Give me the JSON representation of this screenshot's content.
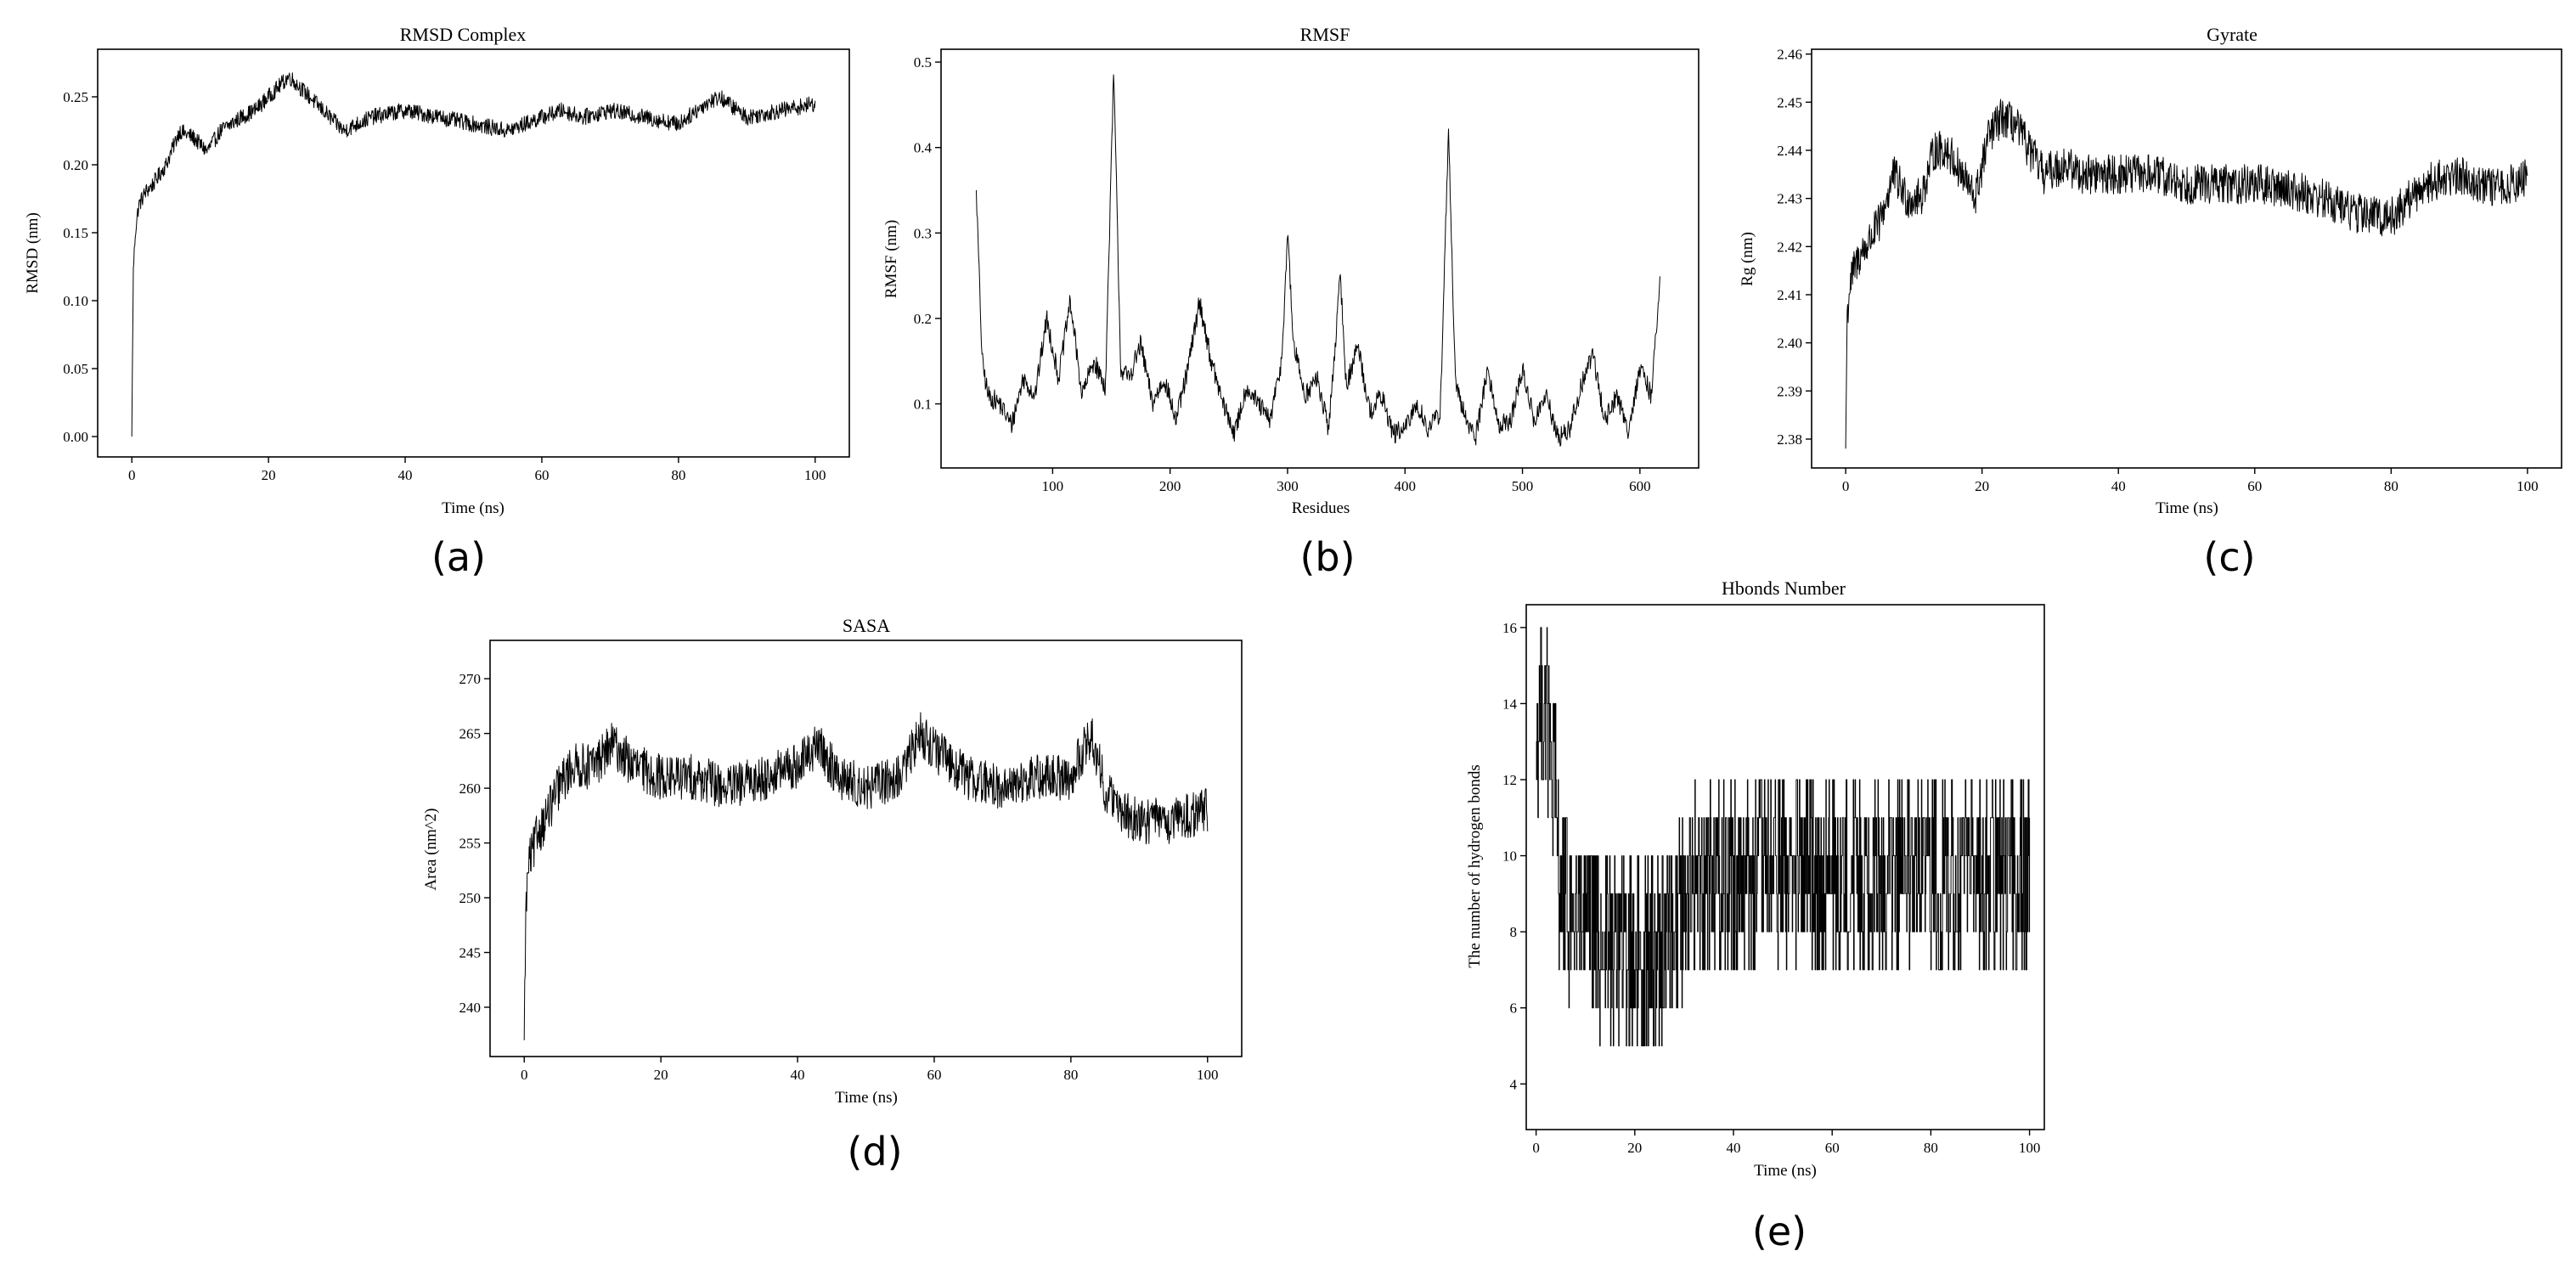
{
  "panel_letters": [
    "(a)",
    "(b)",
    "(c)",
    "(d)",
    "(e)"
  ],
  "chart_data": [
    {
      "type": "line",
      "title": "RMSD Complex",
      "xlabel": "Time (ns)",
      "ylabel": "RMSD (nm)",
      "xlim": [
        -5,
        105
      ],
      "ylim": [
        -0.015,
        0.285
      ],
      "xticks": [
        0,
        20,
        40,
        60,
        80,
        100
      ],
      "yticks": [
        0.0,
        0.05,
        0.1,
        0.15,
        0.2,
        0.25
      ],
      "ytick_labels": [
        "0.00",
        "0.05",
        "0.10",
        "0.15",
        "0.20",
        "0.25"
      ],
      "grid": false,
      "noise": 0.006,
      "samples": 1400,
      "series": [
        {
          "x": [
            0,
            0.2,
            0.5,
            1,
            2,
            3,
            5,
            7,
            9,
            11,
            13,
            16,
            18,
            20,
            22,
            23,
            25,
            27,
            29,
            31,
            35,
            40,
            45,
            50,
            55,
            60,
            63,
            66,
            70,
            75,
            80,
            84,
            86,
            90,
            95,
            100
          ],
          "y": [
            0.0,
            0.12,
            0.15,
            0.17,
            0.18,
            0.185,
            0.2,
            0.225,
            0.22,
            0.21,
            0.225,
            0.235,
            0.24,
            0.25,
            0.26,
            0.265,
            0.255,
            0.245,
            0.235,
            0.225,
            0.235,
            0.24,
            0.235,
            0.23,
            0.225,
            0.235,
            0.24,
            0.235,
            0.24,
            0.235,
            0.23,
            0.245,
            0.25,
            0.235,
            0.24,
            0.245
          ]
        }
      ]
    },
    {
      "type": "line",
      "title": "RMSF",
      "xlabel": "Residues",
      "ylabel": "RMSF (nm)",
      "xlim": [
        5,
        650
      ],
      "ylim": [
        0.025,
        0.515
      ],
      "xticks": [
        100,
        200,
        300,
        400,
        500,
        600
      ],
      "yticks": [
        0.1,
        0.2,
        0.3,
        0.4,
        0.5
      ],
      "ytick_labels": [
        "0.1",
        "0.2",
        "0.3",
        "0.4",
        "0.5"
      ],
      "grid": false,
      "noise": 0.012,
      "samples": 1200,
      "series": [
        {
          "x": [
            35,
            40,
            45,
            55,
            65,
            75,
            85,
            95,
            105,
            115,
            125,
            135,
            145,
            152,
            158,
            165,
            175,
            185,
            195,
            205,
            215,
            225,
            235,
            245,
            255,
            265,
            275,
            285,
            295,
            300,
            305,
            315,
            325,
            335,
            345,
            350,
            360,
            370,
            380,
            390,
            400,
            410,
            420,
            430,
            437,
            443,
            450,
            460,
            470,
            480,
            490,
            500,
            510,
            520,
            530,
            540,
            550,
            560,
            570,
            580,
            590,
            600,
            610,
            617
          ],
          "y": [
            0.35,
            0.15,
            0.11,
            0.1,
            0.075,
            0.13,
            0.11,
            0.2,
            0.13,
            0.22,
            0.11,
            0.15,
            0.12,
            0.49,
            0.14,
            0.13,
            0.17,
            0.1,
            0.13,
            0.08,
            0.14,
            0.22,
            0.15,
            0.1,
            0.065,
            0.12,
            0.1,
            0.08,
            0.15,
            0.3,
            0.17,
            0.11,
            0.13,
            0.07,
            0.25,
            0.12,
            0.17,
            0.09,
            0.11,
            0.065,
            0.07,
            0.1,
            0.07,
            0.09,
            0.42,
            0.12,
            0.09,
            0.06,
            0.14,
            0.075,
            0.08,
            0.14,
            0.08,
            0.11,
            0.06,
            0.07,
            0.12,
            0.16,
            0.08,
            0.11,
            0.07,
            0.14,
            0.11,
            0.25
          ]
        }
      ]
    },
    {
      "type": "line",
      "title": "Gyrate",
      "xlabel": "Time (ns)",
      "ylabel": "Rg (nm)",
      "xlim": [
        -5,
        105
      ],
      "ylim": [
        2.374,
        2.461
      ],
      "xticks": [
        0,
        20,
        40,
        60,
        80,
        100
      ],
      "yticks": [
        2.38,
        2.39,
        2.4,
        2.41,
        2.42,
        2.43,
        2.44,
        2.45,
        2.46
      ],
      "ytick_labels": [
        "2.38",
        "2.39",
        "2.40",
        "2.41",
        "2.42",
        "2.43",
        "2.44",
        "2.45",
        "2.46"
      ],
      "grid": false,
      "noise": 0.0042,
      "samples": 1400,
      "series": [
        {
          "x": [
            0,
            0.2,
            0.6,
            1.2,
            2,
            3,
            5,
            7,
            9,
            11,
            13,
            15,
            17,
            19,
            21,
            23,
            25,
            27,
            29,
            32,
            35,
            40,
            45,
            50,
            55,
            60,
            65,
            70,
            75,
            80,
            85,
            90,
            95,
            100
          ],
          "y": [
            2.378,
            2.405,
            2.412,
            2.415,
            2.418,
            2.42,
            2.425,
            2.435,
            2.43,
            2.43,
            2.44,
            2.44,
            2.435,
            2.43,
            2.443,
            2.447,
            2.445,
            2.44,
            2.435,
            2.437,
            2.435,
            2.435,
            2.435,
            2.433,
            2.433,
            2.433,
            2.432,
            2.43,
            2.427,
            2.426,
            2.433,
            2.435,
            2.432,
            2.434
          ]
        }
      ]
    },
    {
      "type": "line",
      "title": "SASA",
      "xlabel": "Time (ns)",
      "ylabel": "Area (nm^2)",
      "xlim": [
        -5,
        105
      ],
      "ylim": [
        235.5,
        273.5
      ],
      "xticks": [
        0,
        20,
        40,
        60,
        80,
        100
      ],
      "yticks": [
        240,
        245,
        250,
        255,
        260,
        265,
        270
      ],
      "ytick_labels": [
        "240",
        "245",
        "250",
        "255",
        "260",
        "265",
        "270"
      ],
      "grid": false,
      "noise": 2.1,
      "samples": 1400,
      "series": [
        {
          "x": [
            0,
            0.2,
            0.6,
            1.2,
            2,
            3,
            5,
            7,
            10,
            13,
            16,
            20,
            25,
            30,
            35,
            40,
            43,
            46,
            50,
            55,
            58,
            61,
            65,
            70,
            75,
            80,
            83,
            85,
            87,
            90,
            95,
            100
          ],
          "y": [
            237,
            248,
            253,
            254,
            256,
            257,
            260,
            262,
            262,
            264,
            262,
            261,
            261,
            260,
            261,
            262,
            264,
            261,
            260,
            261,
            265,
            263,
            261,
            260,
            261,
            261,
            265,
            260,
            258,
            257,
            257,
            258
          ]
        }
      ]
    },
    {
      "type": "line",
      "title": "Hbonds Number",
      "xlabel": "Time (ns)",
      "ylabel": "The number of hydrogen bonds",
      "xlim": [
        -2,
        103
      ],
      "ylim": [
        2.8,
        16.6
      ],
      "xticks": [
        0,
        20,
        40,
        60,
        80,
        100
      ],
      "yticks": [
        4,
        6,
        8,
        10,
        12,
        14,
        16
      ],
      "ytick_labels": [
        "4",
        "6",
        "8",
        "10",
        "12",
        "14",
        "16"
      ],
      "grid": false,
      "noise": 1.6,
      "step": true,
      "samples": 1100,
      "series": [
        {
          "x": [
            0,
            1,
            2,
            3,
            4,
            5,
            7,
            10,
            15,
            20,
            25,
            30,
            35,
            40,
            45,
            50,
            55,
            60,
            65,
            70,
            75,
            80,
            85,
            90,
            95,
            100
          ],
          "y": [
            13,
            14,
            14,
            12,
            11,
            9,
            8.5,
            8,
            7.5,
            7.5,
            7.5,
            9,
            9.5,
            9.5,
            9.5,
            9.5,
            9.5,
            9.5,
            9.5,
            9.5,
            9.5,
            9.5,
            9.5,
            9.5,
            9.5,
            9.5
          ]
        }
      ]
    }
  ]
}
